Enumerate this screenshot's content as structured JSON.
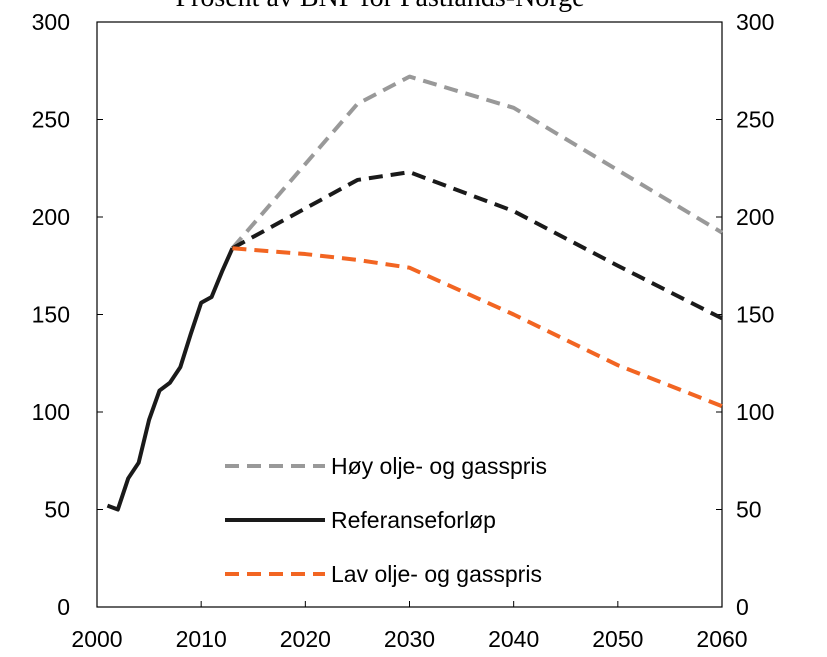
{
  "chart_data": {
    "type": "line",
    "title": "Prosent av BNP for Fastlands-Norge",
    "xlim": [
      2000,
      2060
    ],
    "xticks": [
      2000,
      2010,
      2020,
      2030,
      2040,
      2050,
      2060
    ],
    "ylim": [
      0,
      300
    ],
    "yticks": [
      0,
      50,
      100,
      150,
      200,
      250,
      300
    ],
    "y2lim": [
      0,
      300
    ],
    "y2ticks": [
      0,
      50,
      100,
      150,
      200,
      250,
      300
    ],
    "legend": "lower-center",
    "series": [
      {
        "name": "Høy olje- og gasspris",
        "color": "#999999",
        "dashed": true,
        "x": [
          2013,
          2025,
          2030,
          2040,
          2050,
          2060
        ],
        "values": [
          184,
          258,
          272,
          256,
          224,
          192
        ]
      },
      {
        "name": "Referanseforløp",
        "color": "#1a1a1a",
        "dashed_after": 2013,
        "x": [
          2001,
          2002,
          2003,
          2004,
          2005,
          2006,
          2007,
          2008,
          2009,
          2010,
          2011,
          2012,
          2013,
          2025,
          2030,
          2040,
          2050,
          2060
        ],
        "values": [
          52,
          50,
          66,
          74,
          96,
          111,
          115,
          123,
          140,
          156,
          159,
          172,
          184,
          219,
          223,
          203,
          175,
          148
        ]
      },
      {
        "name": "Lav olje- og gasspris",
        "color": "#f26522",
        "dashed": true,
        "x": [
          2013,
          2020,
          2025,
          2030,
          2040,
          2050,
          2060
        ],
        "values": [
          184,
          181,
          178,
          174,
          150,
          124,
          103
        ]
      }
    ]
  }
}
